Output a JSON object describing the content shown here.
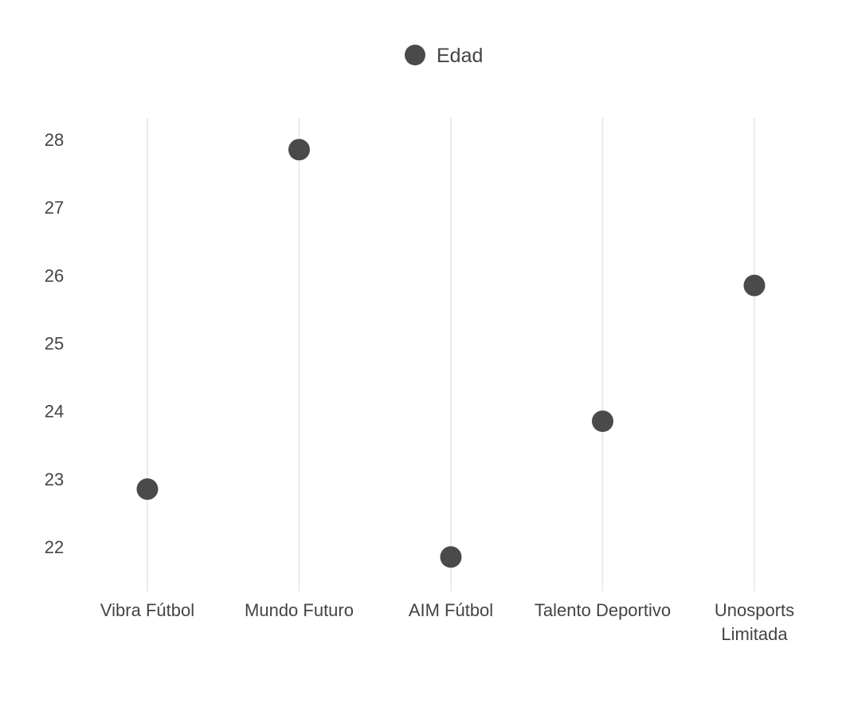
{
  "chart_data": {
    "type": "scatter",
    "title": "",
    "xlabel": "",
    "ylabel": "",
    "categories": [
      "Vibra Fútbol",
      "Mundo Futuro",
      "AIM Fútbol",
      "Talento Deportivo",
      "Unosports Limitada"
    ],
    "series": [
      {
        "name": "Edad",
        "values": [
          22.85,
          27.85,
          21.85,
          23.85,
          25.85
        ],
        "color": "#4a4a4a"
      }
    ],
    "ylim": [
      21.4,
      28.3
    ],
    "yticks": [
      22,
      23,
      24,
      25,
      26,
      27,
      28
    ],
    "legend_position": "top-center",
    "grid": "vertical"
  },
  "colors": {
    "marker": "#4a4a4a",
    "text": "#444444",
    "grid": "#e6e6e6"
  }
}
